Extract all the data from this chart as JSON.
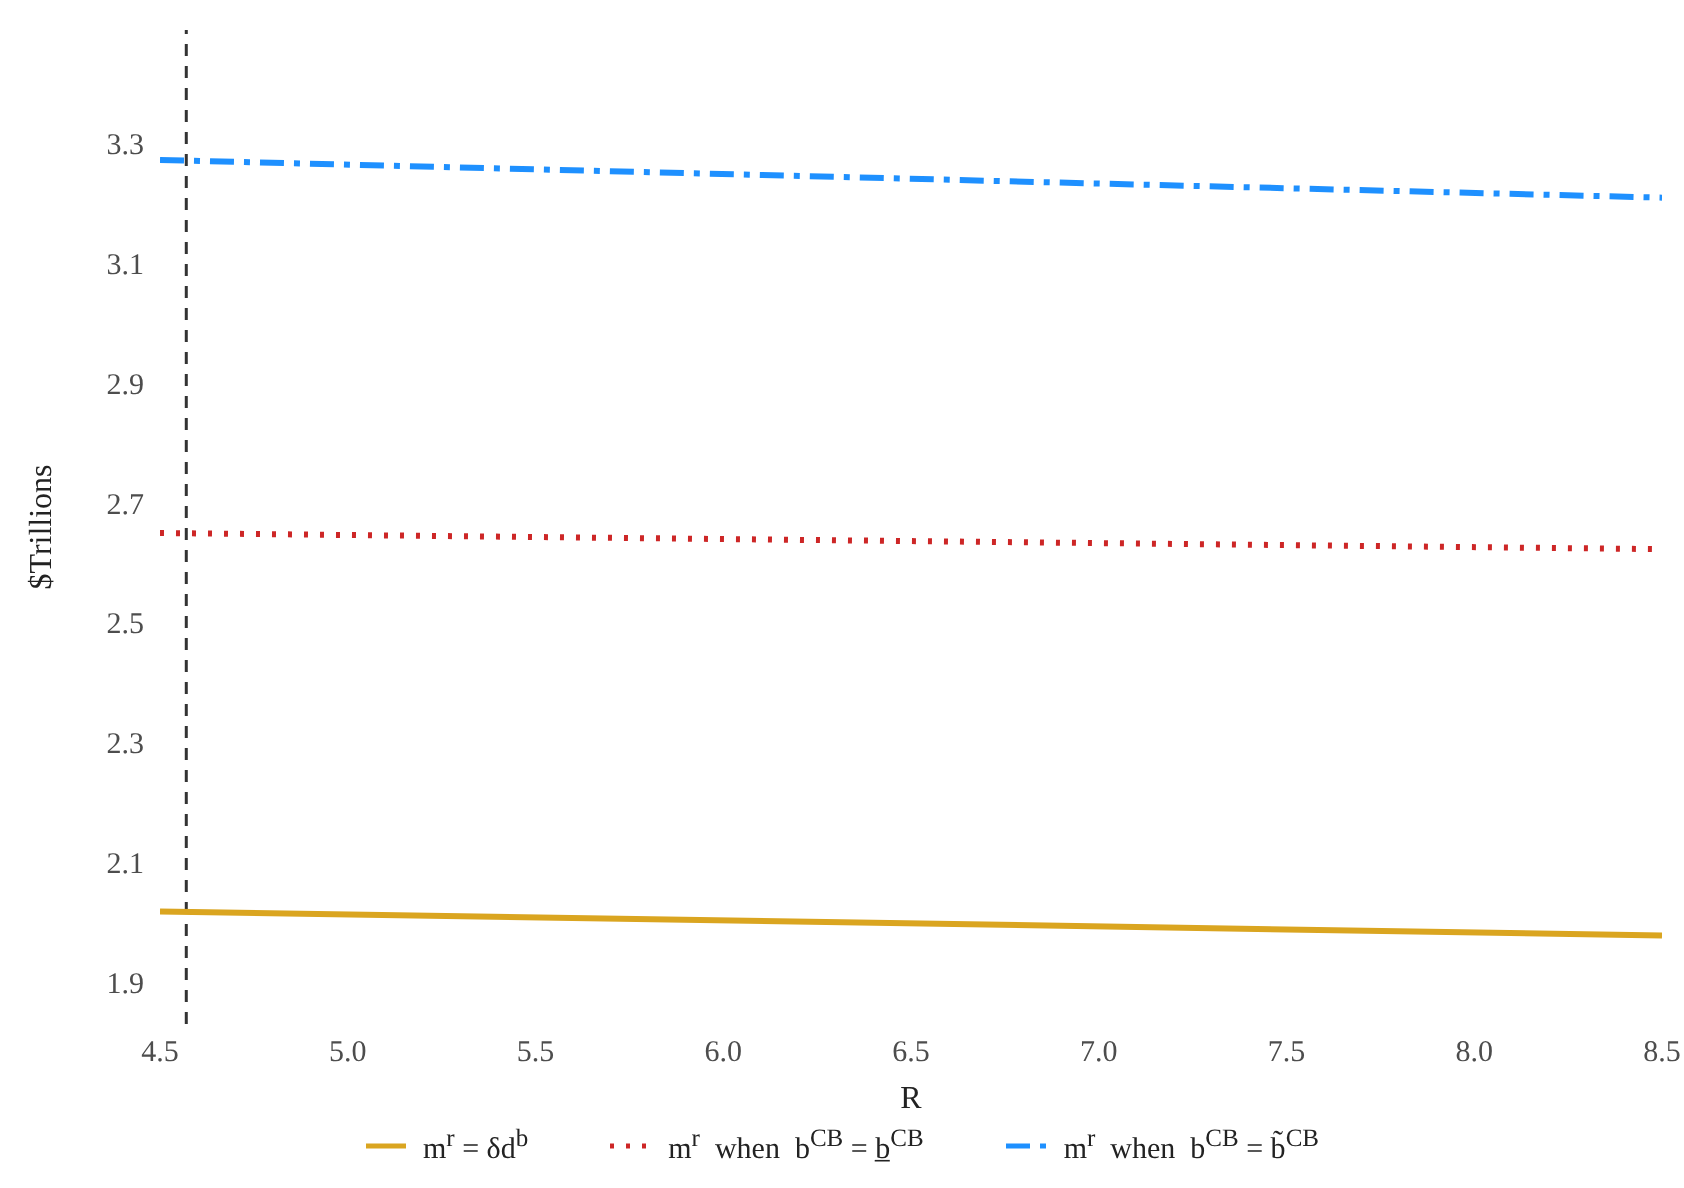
{
  "chart_data": {
    "type": "line",
    "xlabel": "R",
    "ylabel": "$Trillions",
    "xlim": [
      4.5,
      8.5
    ],
    "xticks": [
      4.5,
      {
        "value": 5,
        "label": "5.0"
      },
      5.5,
      {
        "value": 6,
        "label": "6.0"
      },
      6.5,
      {
        "value": 7,
        "label": "7.0"
      },
      7.5,
      {
        "value": 8,
        "label": "8.0"
      },
      8.5
    ],
    "ylim": [
      1.83,
      3.49
    ],
    "yticks": [
      1.9,
      2.1,
      2.3,
      2.5,
      2.7,
      2.9,
      3.1,
      3.3
    ],
    "x": [
      4.5,
      8.5
    ],
    "series": [
      {
        "name": "m$^{r}$ = δd$^{b}$",
        "color": "#daa520",
        "values": [
          2.018,
          1.978
        ],
        "line_style": "solid"
      },
      {
        "name": "m$^{r}$  when  b$^{CB}$ = b̲$^{CB}$",
        "color": "#cd2626",
        "values": [
          2.65,
          2.623
        ],
        "line_style": "dotted"
      },
      {
        "name": "m$^{r}$  when  b$^{CB}$ = b̃$^{CB}$",
        "color": "#1e90ff",
        "values": [
          3.273,
          3.21
        ],
        "line_style": "dashed"
      }
    ],
    "ref_lines": [
      {
        "axis": "x",
        "value": 4.57,
        "color": "#333333",
        "line_style": "dashed"
      }
    ],
    "grid": false,
    "legend": "bottom",
    "marker": "none"
  }
}
